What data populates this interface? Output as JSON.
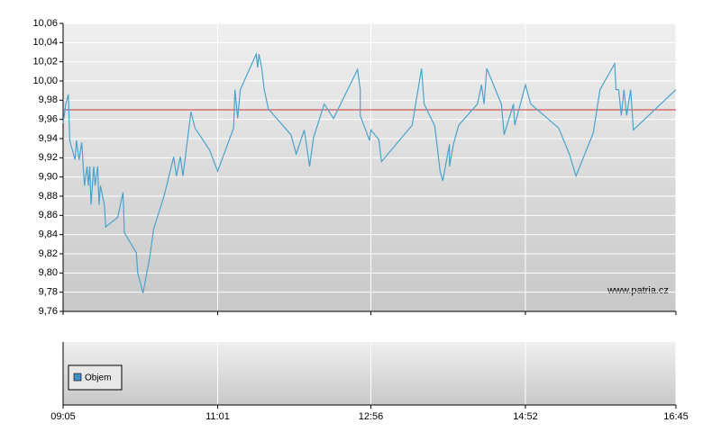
{
  "chart_data": {
    "type": "line",
    "annotation": "www.patria.cz",
    "color": "#4aa3cc",
    "reference_line": 9.97,
    "reference_color": "#cc3333",
    "grid": true,
    "volume_legend": "Objem",
    "volume_color": "#3f8fc4",
    "x": [
      "09:05",
      "09:07",
      "09:09",
      "09:10",
      "09:14",
      "09:15",
      "09:17",
      "09:19",
      "09:21",
      "09:23",
      "09:24",
      "09:25",
      "09:26",
      "09:28",
      "09:29",
      "09:31",
      "09:32",
      "09:33",
      "09:36",
      "09:37",
      "09:46",
      "09:50",
      "09:51",
      "10:00",
      "10:01",
      "10:05",
      "10:10",
      "10:13",
      "10:21",
      "10:28",
      "10:30",
      "10:33",
      "10:35",
      "10:41",
      "10:44",
      "10:55",
      "11:01",
      "11:13",
      "11:14",
      "11:16",
      "11:18",
      "11:30",
      "11:31",
      "11:32",
      "11:34",
      "11:36",
      "11:39",
      "11:56",
      "12:00",
      "12:06",
      "12:10",
      "12:13",
      "12:21",
      "12:28",
      "12:46",
      "12:48",
      "12:48",
      "12:55",
      "12:56",
      "13:02",
      "13:04",
      "13:27",
      "13:34",
      "13:36",
      "13:44",
      "13:48",
      "13:50",
      "13:55",
      "13:55",
      "13:58",
      "14:02",
      "14:16",
      "14:19",
      "14:21",
      "14:23",
      "14:34",
      "14:36",
      "14:43",
      "14:44",
      "14:52",
      "14:56",
      "15:17",
      "15:25",
      "15:30",
      "15:43",
      "15:48",
      "15:59",
      "16:00",
      "16:02",
      "16:04",
      "16:06",
      "16:08",
      "16:11",
      "16:12",
      "16:13",
      "16:45"
    ],
    "values": [
      9.956,
      9.976,
      9.986,
      9.938,
      9.918,
      9.938,
      9.918,
      9.936,
      9.891,
      9.911,
      9.891,
      9.911,
      9.871,
      9.911,
      9.891,
      9.911,
      9.871,
      9.891,
      9.871,
      9.848,
      9.858,
      9.884,
      9.842,
      9.821,
      9.8,
      9.779,
      9.816,
      9.846,
      9.881,
      9.921,
      9.901,
      9.921,
      9.901,
      9.968,
      9.951,
      9.928,
      9.906,
      9.951,
      9.991,
      9.961,
      9.991,
      10.028,
      10.014,
      10.028,
      10.014,
      9.991,
      9.971,
      9.944,
      9.924,
      9.949,
      9.911,
      9.941,
      9.976,
      9.961,
      10.012,
      9.991,
      9.964,
      9.938,
      9.949,
      9.939,
      9.916,
      9.954,
      10.013,
      9.976,
      9.953,
      9.906,
      9.896,
      9.934,
      9.911,
      9.934,
      9.954,
      9.976,
      9.996,
      9.976,
      10.013,
      9.976,
      9.944,
      9.976,
      9.954,
      9.996,
      9.976,
      9.951,
      9.924,
      9.901,
      9.946,
      9.991,
      10.018,
      9.991,
      9.991,
      9.964,
      9.991,
      9.964,
      9.991,
      9.971,
      9.949,
      9.991
    ],
    "xlim": [
      "09:05",
      "16:45"
    ],
    "xticks": [
      "09:05",
      "11:01",
      "12:56",
      "14:52",
      "16:45"
    ],
    "ylim": [
      9.76,
      10.06
    ],
    "yticks": [
      {
        "value": 9.76,
        "label": "9,76"
      },
      {
        "value": 9.78,
        "label": "9,78"
      },
      {
        "value": 9.8,
        "label": "9,80"
      },
      {
        "value": 9.82,
        "label": "9,82"
      },
      {
        "value": 9.84,
        "label": "9,84"
      },
      {
        "value": 9.86,
        "label": "9,86"
      },
      {
        "value": 9.88,
        "label": "9,88"
      },
      {
        "value": 9.9,
        "label": "9,90"
      },
      {
        "value": 9.92,
        "label": "9,92"
      },
      {
        "value": 9.94,
        "label": "9,94"
      },
      {
        "value": 9.96,
        "label": "9,96"
      },
      {
        "value": 9.98,
        "label": "9,98"
      },
      {
        "value": 10.0,
        "label": "10,00"
      },
      {
        "value": 10.02,
        "label": "10,02"
      },
      {
        "value": 10.04,
        "label": "10,04"
      },
      {
        "value": 10.06,
        "label": "10,06"
      }
    ]
  }
}
